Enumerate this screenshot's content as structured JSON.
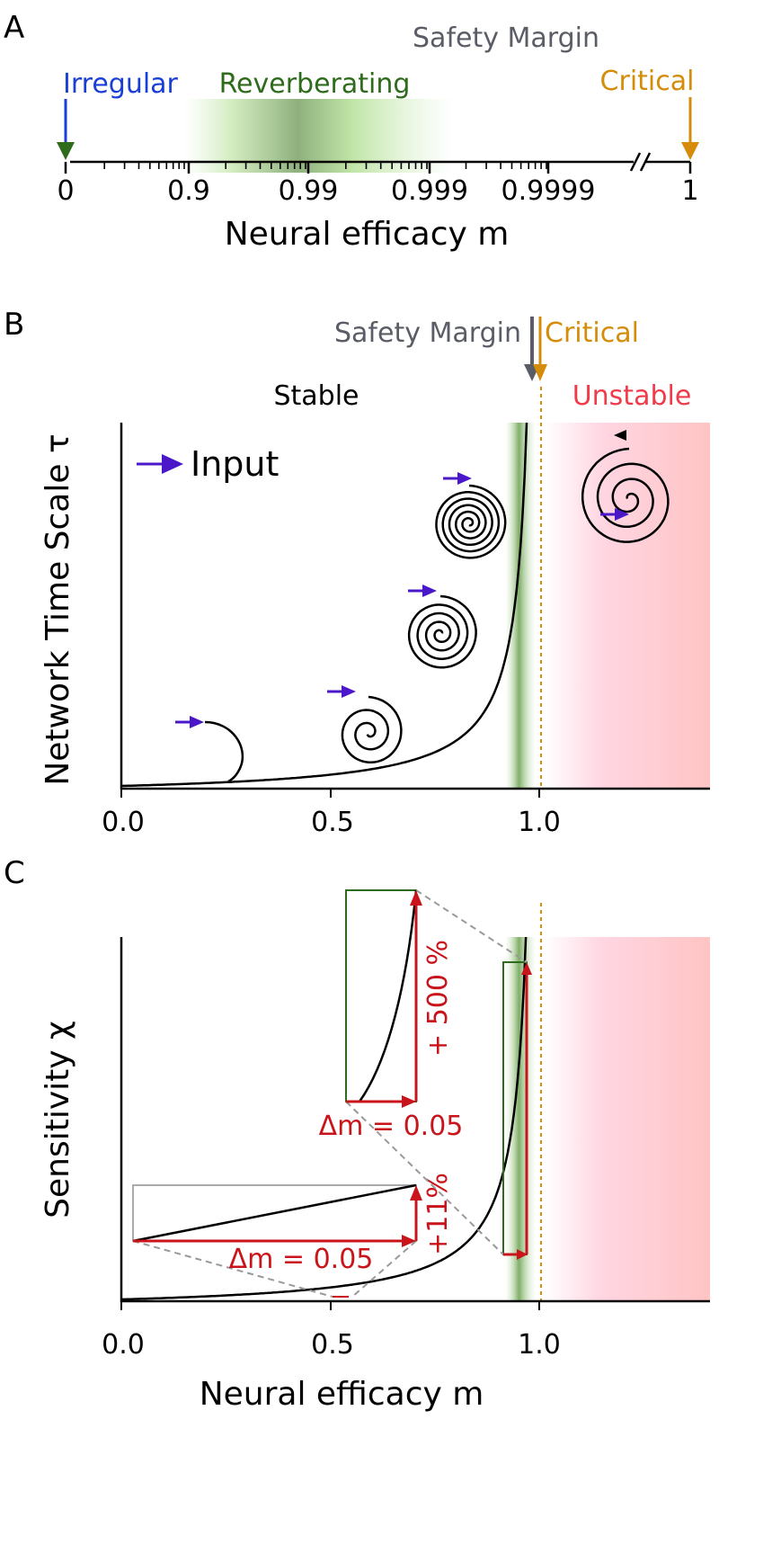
{
  "panelA": {
    "letter": "A",
    "labels": {
      "irregular": "Irregular",
      "reverberating": "Reverberating",
      "safety_margin": "Safety Margin",
      "critical": "Critical"
    },
    "ticks": [
      "0",
      "0.9",
      "0.99",
      "0.999",
      "0.9999",
      "1"
    ],
    "xlabel": "Neural efficacy m"
  },
  "panelB": {
    "letter": "B",
    "safety_margin": "Safety Margin",
    "critical": "Critical",
    "stable": "Stable",
    "unstable": "Unstable",
    "input_legend": "Input",
    "ylabel": "Network Time Scale τ",
    "xticks": [
      "0.0",
      "0.5",
      "1.0"
    ]
  },
  "panelC": {
    "letter": "C",
    "ylabel": "Sensitivity χ",
    "xlabel": "Neural efficacy m",
    "xticks": [
      "0.0",
      "0.5",
      "1.0"
    ],
    "dm_low": "Δm = 0.05",
    "dm_high": "Δm = 0.05",
    "pct_low": "+11%",
    "pct_high": "+ 500 %"
  },
  "colors": {
    "irregular": "#1a3fd6",
    "reverberating": "#2e6b1a",
    "safety_margin": "#5a5d66",
    "critical": "#d48c0a",
    "unstable": "#f03c4a",
    "input_arrow": "#4a18c8",
    "annotation_red": "#c8141a"
  }
}
